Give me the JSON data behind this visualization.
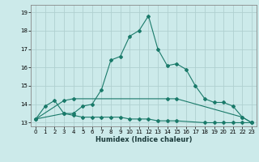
{
  "title": "",
  "xlabel": "Humidex (Indice chaleur)",
  "x": [
    0,
    1,
    2,
    3,
    4,
    5,
    6,
    7,
    8,
    9,
    10,
    11,
    12,
    13,
    14,
    15,
    16,
    17,
    18,
    19,
    20,
    21,
    22,
    23
  ],
  "line1": [
    13.2,
    13.9,
    14.2,
    13.5,
    13.5,
    13.9,
    14.0,
    14.8,
    16.4,
    16.6,
    17.7,
    18.0,
    18.8,
    17.0,
    16.1,
    16.2,
    15.9,
    15.0,
    14.3,
    14.1,
    14.1,
    13.9,
    13.3,
    13.0
  ],
  "line2": [
    13.2,
    null,
    null,
    14.2,
    14.3,
    null,
    null,
    null,
    null,
    null,
    null,
    null,
    null,
    null,
    14.3,
    14.3,
    null,
    null,
    null,
    null,
    null,
    null,
    13.3,
    13.0
  ],
  "line3": [
    13.2,
    null,
    null,
    13.5,
    13.4,
    13.3,
    13.3,
    13.3,
    13.3,
    13.3,
    13.2,
    13.2,
    13.2,
    13.1,
    13.1,
    13.1,
    null,
    null,
    13.0,
    13.0,
    13.0,
    13.0,
    13.0,
    13.0
  ],
  "color": "#1a7a6a",
  "bg_color": "#cceaea",
  "grid_color": "#b0d0d0",
  "ylim": [
    12.8,
    19.4
  ],
  "yticks": [
    13,
    14,
    15,
    16,
    17,
    18,
    19
  ],
  "xlim": [
    -0.5,
    23.5
  ],
  "xticks": [
    0,
    1,
    2,
    3,
    4,
    5,
    6,
    7,
    8,
    9,
    10,
    11,
    12,
    13,
    14,
    15,
    16,
    17,
    18,
    19,
    20,
    21,
    22,
    23
  ]
}
